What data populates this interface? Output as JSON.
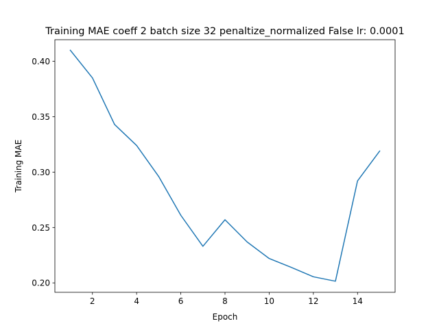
{
  "chart_data": {
    "type": "line",
    "title": "Training MAE coeff 2 batch size 32 penaltize_normalized False lr: 0.0001",
    "xlabel": "Epoch",
    "ylabel": "Training MAE",
    "x": [
      1,
      2,
      3,
      4,
      5,
      6,
      7,
      8,
      9,
      10,
      11,
      12,
      13,
      14,
      15
    ],
    "series": [
      {
        "values": [
          0.41,
          0.385,
          0.343,
          0.324,
          0.296,
          0.261,
          0.233,
          0.257,
          0.237,
          0.222,
          0.214,
          0.2055,
          0.2015,
          0.292,
          0.319
        ],
        "color": "#1f77b4"
      }
    ],
    "xlim": [
      0.3,
      15.7
    ],
    "ylim": [
      0.1915,
      0.4195
    ],
    "xticks": [
      2,
      4,
      6,
      8,
      10,
      12,
      14
    ],
    "xtick_labels": [
      "2",
      "4",
      "6",
      "8",
      "10",
      "12",
      "14"
    ],
    "yticks": [
      0.2,
      0.25,
      0.3,
      0.35,
      0.4
    ],
    "ytick_labels": [
      "0.20",
      "0.25",
      "0.30",
      "0.35",
      "0.40"
    ],
    "grid": false,
    "legend": false
  }
}
